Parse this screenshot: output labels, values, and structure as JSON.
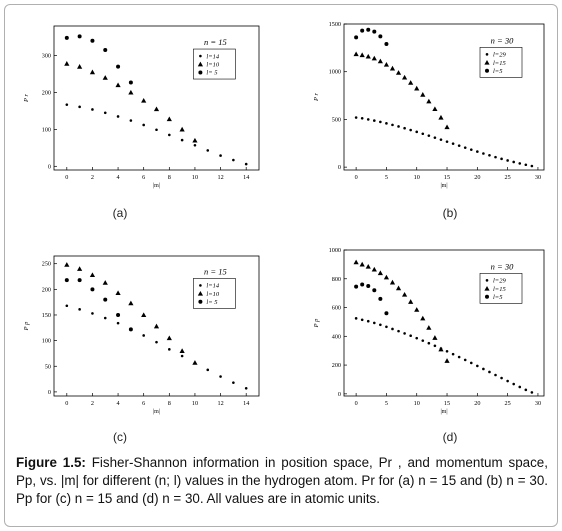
{
  "panels": [
    {
      "letter": "(a)",
      "ylabel": "P r",
      "xlabel": "|m|",
      "legend_title": "n = 15",
      "xlim": [
        -1,
        15
      ],
      "ylim": [
        -10,
        380
      ],
      "xticks": [
        0,
        2,
        4,
        6,
        8,
        10,
        12,
        14
      ],
      "yticks": [
        0,
        100,
        200,
        300
      ],
      "series": [
        {
          "name": "l=14",
          "marker": "dot",
          "x": [
            0,
            1,
            2,
            3,
            4,
            5,
            6,
            7,
            8,
            9,
            10,
            11,
            12,
            13,
            14
          ],
          "y": [
            167,
            161,
            154,
            145,
            135,
            124,
            112,
            99,
            85,
            71,
            57,
            43,
            29,
            17,
            6
          ]
        },
        {
          "name": "l=10",
          "marker": "triangle",
          "x": [
            0,
            1,
            2,
            3,
            4,
            5,
            6,
            7,
            8,
            9,
            10
          ],
          "y": [
            278,
            270,
            255,
            240,
            220,
            200,
            178,
            155,
            128,
            100,
            70
          ]
        },
        {
          "name": "l= 5",
          "marker": "circle",
          "x": [
            0,
            1,
            2,
            3,
            4,
            5
          ],
          "y": [
            348,
            352,
            340,
            315,
            270,
            227
          ]
        }
      ]
    },
    {
      "letter": "(b)",
      "ylabel": "P r",
      "xlabel": "|m|",
      "legend_title": "n = 30",
      "xlim": [
        -2,
        31
      ],
      "ylim": [
        -30,
        1500
      ],
      "xticks": [
        0,
        5,
        10,
        15,
        20,
        25,
        30
      ],
      "yticks": [
        0,
        500,
        1000,
        1500
      ],
      "series": [
        {
          "name": "l=29",
          "marker": "dot",
          "x": [
            0,
            1,
            2,
            3,
            4,
            5,
            6,
            7,
            8,
            9,
            10,
            11,
            12,
            13,
            14,
            15,
            16,
            17,
            18,
            19,
            20,
            21,
            22,
            23,
            24,
            25,
            26,
            27,
            28,
            29
          ],
          "y": [
            520,
            512,
            500,
            488,
            474,
            459,
            443,
            426,
            408,
            389,
            370,
            350,
            330,
            309,
            288,
            267,
            246,
            225,
            204,
            183,
            163,
            143,
            124,
            105,
            87,
            70,
            54,
            39,
            25,
            12
          ]
        },
        {
          "name": "l=15",
          "marker": "triangle",
          "x": [
            0,
            1,
            2,
            3,
            4,
            5,
            6,
            7,
            8,
            9,
            10,
            11,
            12,
            13,
            14,
            15
          ],
          "y": [
            1185,
            1175,
            1160,
            1140,
            1110,
            1075,
            1035,
            990,
            940,
            885,
            825,
            760,
            690,
            610,
            520,
            420
          ]
        },
        {
          "name": "l=5",
          "marker": "circle",
          "x": [
            0,
            1,
            2,
            3,
            4,
            5
          ],
          "y": [
            1360,
            1430,
            1440,
            1420,
            1370,
            1290
          ]
        }
      ]
    },
    {
      "letter": "(c)",
      "ylabel": "P p",
      "xlabel": "|m|",
      "legend_title": "n = 15",
      "xlim": [
        -1,
        15
      ],
      "ylim": [
        -8,
        265
      ],
      "xticks": [
        0,
        2,
        4,
        6,
        8,
        10,
        12,
        14
      ],
      "yticks": [
        0,
        50,
        100,
        150,
        200,
        250
      ],
      "series": [
        {
          "name": "l=14",
          "marker": "dot",
          "x": [
            0,
            1,
            2,
            3,
            4,
            5,
            6,
            7,
            8,
            9,
            10,
            11,
            12,
            13,
            14
          ],
          "y": [
            168,
            161,
            153,
            144,
            134,
            123,
            110,
            97,
            83,
            70,
            56,
            43,
            30,
            18,
            7
          ]
        },
        {
          "name": "l=10",
          "marker": "triangle",
          "x": [
            0,
            1,
            2,
            3,
            4,
            5,
            6,
            7,
            8,
            9,
            10
          ],
          "y": [
            248,
            240,
            228,
            213,
            193,
            173,
            150,
            128,
            105,
            80,
            57
          ]
        },
        {
          "name": "l= 5",
          "marker": "circle",
          "x": [
            0,
            1,
            2,
            3,
            4,
            5
          ],
          "y": [
            218,
            218,
            200,
            180,
            150,
            122
          ]
        }
      ]
    },
    {
      "letter": "(d)",
      "ylabel": "P p",
      "xlabel": "|m|",
      "legend_title": "n = 30",
      "xlim": [
        -2,
        31
      ],
      "ylim": [
        -15,
        1000
      ],
      "xticks": [
        0,
        5,
        10,
        15,
        20,
        25,
        30
      ],
      "yticks": [
        0,
        200,
        400,
        600,
        800,
        1000
      ],
      "series": [
        {
          "name": "l=29",
          "marker": "dot",
          "x": [
            0,
            1,
            2,
            3,
            4,
            5,
            6,
            7,
            8,
            9,
            10,
            11,
            12,
            13,
            14,
            15,
            16,
            17,
            18,
            19,
            20,
            21,
            22,
            23,
            24,
            25,
            26,
            27,
            28,
            29
          ],
          "y": [
            525,
            515,
            505,
            493,
            480,
            466,
            451,
            436,
            420,
            404,
            387,
            370,
            352,
            334,
            315,
            296,
            276,
            256,
            236,
            215,
            194,
            173,
            152,
            131,
            110,
            89,
            68,
            48,
            28,
            10
          ]
        },
        {
          "name": "l=15",
          "marker": "triangle",
          "x": [
            0,
            1,
            2,
            3,
            4,
            5,
            6,
            7,
            8,
            9,
            10,
            11,
            12,
            13,
            14,
            15
          ],
          "y": [
            915,
            900,
            885,
            865,
            840,
            810,
            775,
            735,
            690,
            640,
            585,
            525,
            460,
            390,
            310,
            230
          ]
        },
        {
          "name": "l=5",
          "marker": "circle",
          "x": [
            0,
            1,
            2,
            3,
            4,
            5
          ],
          "y": [
            745,
            760,
            750,
            720,
            660,
            560
          ]
        }
      ]
    }
  ],
  "caption": {
    "label": "Figure 1.5:",
    "text": "Fisher-Shannon information in position space, Pr , and momentum space, Pp, vs. |m| for different (n; l) values in the hydrogen atom. Pr for (a) n = 15 and (b) n = 30. Pp for (c) n = 15 and (d) n = 30. All values are in atomic units."
  },
  "chart_data": [
    {
      "type": "scatter",
      "title": "",
      "xlabel": "|m|",
      "ylabel": "Pr",
      "xlim": [
        -1,
        15
      ],
      "ylim": [
        -10,
        380
      ],
      "series": [
        {
          "name": "l=14",
          "x": [
            0,
            1,
            2,
            3,
            4,
            5,
            6,
            7,
            8,
            9,
            10,
            11,
            12,
            13,
            14
          ],
          "y": [
            167,
            161,
            154,
            145,
            135,
            124,
            112,
            99,
            85,
            71,
            57,
            43,
            29,
            17,
            6
          ]
        },
        {
          "name": "l=10",
          "x": [
            0,
            1,
            2,
            3,
            4,
            5,
            6,
            7,
            8,
            9,
            10
          ],
          "y": [
            278,
            270,
            255,
            240,
            220,
            200,
            178,
            155,
            128,
            100,
            70
          ]
        },
        {
          "name": "l= 5",
          "x": [
            0,
            1,
            2,
            3,
            4,
            5
          ],
          "y": [
            348,
            352,
            340,
            315,
            270,
            227
          ]
        }
      ]
    },
    {
      "type": "scatter",
      "title": "",
      "xlabel": "|m|",
      "ylabel": "Pr",
      "xlim": [
        -2,
        31
      ],
      "ylim": [
        -30,
        1500
      ],
      "series": [
        {
          "name": "l=29",
          "x": [
            0,
            1,
            2,
            3,
            4,
            5,
            6,
            7,
            8,
            9,
            10,
            11,
            12,
            13,
            14,
            15,
            16,
            17,
            18,
            19,
            20,
            21,
            22,
            23,
            24,
            25,
            26,
            27,
            28,
            29
          ],
          "y": [
            520,
            512,
            500,
            488,
            474,
            459,
            443,
            426,
            408,
            389,
            370,
            350,
            330,
            309,
            288,
            267,
            246,
            225,
            204,
            183,
            163,
            143,
            124,
            105,
            87,
            70,
            54,
            39,
            25,
            12
          ]
        },
        {
          "name": "l=15",
          "x": [
            0,
            1,
            2,
            3,
            4,
            5,
            6,
            7,
            8,
            9,
            10,
            11,
            12,
            13,
            14,
            15
          ],
          "y": [
            1185,
            1175,
            1160,
            1140,
            1110,
            1075,
            1035,
            990,
            940,
            885,
            825,
            760,
            690,
            610,
            520,
            420
          ]
        },
        {
          "name": "l=5",
          "x": [
            0,
            1,
            2,
            3,
            4,
            5
          ],
          "y": [
            1360,
            1430,
            1440,
            1420,
            1370,
            1290
          ]
        }
      ]
    },
    {
      "type": "scatter",
      "title": "",
      "xlabel": "|m|",
      "ylabel": "Pp",
      "xlim": [
        -1,
        15
      ],
      "ylim": [
        -8,
        265
      ],
      "series": [
        {
          "name": "l=14",
          "x": [
            0,
            1,
            2,
            3,
            4,
            5,
            6,
            7,
            8,
            9,
            10,
            11,
            12,
            13,
            14
          ],
          "y": [
            168,
            161,
            153,
            144,
            134,
            123,
            110,
            97,
            83,
            70,
            56,
            43,
            30,
            18,
            7
          ]
        },
        {
          "name": "l=10",
          "x": [
            0,
            1,
            2,
            3,
            4,
            5,
            6,
            7,
            8,
            9,
            10
          ],
          "y": [
            248,
            240,
            228,
            213,
            193,
            173,
            150,
            128,
            105,
            80,
            57
          ]
        },
        {
          "name": "l= 5",
          "x": [
            0,
            1,
            2,
            3,
            4,
            5
          ],
          "y": [
            218,
            218,
            200,
            180,
            150,
            122
          ]
        }
      ]
    },
    {
      "type": "scatter",
      "title": "",
      "xlabel": "|m|",
      "ylabel": "Pp",
      "xlim": [
        -2,
        31
      ],
      "ylim": [
        -15,
        1000
      ],
      "series": [
        {
          "name": "l=29",
          "x": [
            0,
            1,
            2,
            3,
            4,
            5,
            6,
            7,
            8,
            9,
            10,
            11,
            12,
            13,
            14,
            15,
            16,
            17,
            18,
            19,
            20,
            21,
            22,
            23,
            24,
            25,
            26,
            27,
            28,
            29
          ],
          "y": [
            525,
            515,
            505,
            493,
            480,
            466,
            451,
            436,
            420,
            404,
            387,
            370,
            352,
            334,
            315,
            296,
            276,
            256,
            236,
            215,
            194,
            173,
            152,
            131,
            110,
            89,
            68,
            48,
            28,
            10
          ]
        },
        {
          "name": "l=15",
          "x": [
            0,
            1,
            2,
            3,
            4,
            5,
            6,
            7,
            8,
            9,
            10,
            11,
            12,
            13,
            14,
            15
          ],
          "y": [
            915,
            900,
            885,
            865,
            840,
            810,
            775,
            735,
            690,
            640,
            585,
            525,
            460,
            390,
            310,
            230
          ]
        },
        {
          "name": "l=5",
          "x": [
            0,
            1,
            2,
            3,
            4,
            5
          ],
          "y": [
            745,
            760,
            750,
            720,
            660,
            560
          ]
        }
      ]
    }
  ]
}
